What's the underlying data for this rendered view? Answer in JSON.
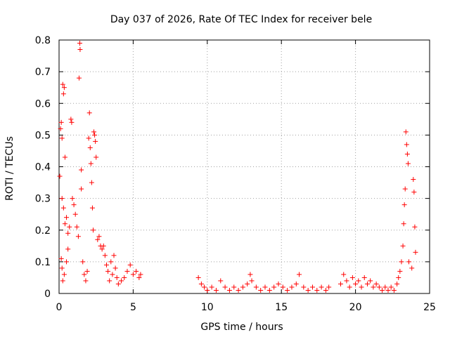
{
  "chart_data": {
    "type": "scatter",
    "title": "Day 037 of 2026, Rate Of TEC Index for receiver bele",
    "xlabel": "GPS time / hours",
    "ylabel": "ROTI / TECUs",
    "xlim": [
      0,
      25
    ],
    "ylim": [
      0,
      0.8
    ],
    "xticks": [
      0,
      5,
      10,
      15,
      20,
      25
    ],
    "xtick_labels": [
      "0",
      "5",
      "10",
      "15",
      "20",
      "25"
    ],
    "yticks": [
      0,
      0.1,
      0.2,
      0.3,
      0.4,
      0.5,
      0.6,
      0.7,
      0.8
    ],
    "ytick_labels": [
      "0",
      "0.1",
      "0.2",
      "0.3",
      "0.4",
      "0.5",
      "0.6",
      "0.7",
      "0.8"
    ],
    "grid": true,
    "marker": "+",
    "marker_color": "#ff0000",
    "series": [
      {
        "name": "ROTI",
        "points": [
          [
            0.05,
            0.37
          ],
          [
            0.1,
            0.52
          ],
          [
            0.15,
            0.54
          ],
          [
            0.2,
            0.49
          ],
          [
            0.25,
            0.66
          ],
          [
            0.3,
            0.63
          ],
          [
            0.35,
            0.65
          ],
          [
            0.4,
            0.43
          ],
          [
            0.2,
            0.3
          ],
          [
            0.3,
            0.27
          ],
          [
            0.4,
            0.22
          ],
          [
            0.5,
            0.24
          ],
          [
            0.6,
            0.19
          ],
          [
            0.7,
            0.21
          ],
          [
            0.15,
            0.11
          ],
          [
            0.2,
            0.08
          ],
          [
            0.25,
            0.04
          ],
          [
            0.35,
            0.06
          ],
          [
            0.5,
            0.1
          ],
          [
            0.6,
            0.14
          ],
          [
            0.8,
            0.55
          ],
          [
            0.85,
            0.54
          ],
          [
            0.9,
            0.3
          ],
          [
            1.0,
            0.28
          ],
          [
            1.1,
            0.25
          ],
          [
            1.2,
            0.21
          ],
          [
            1.3,
            0.18
          ],
          [
            1.35,
            0.68
          ],
          [
            1.4,
            0.79
          ],
          [
            1.42,
            0.77
          ],
          [
            1.5,
            0.33
          ],
          [
            1.5,
            0.39
          ],
          [
            1.6,
            0.1
          ],
          [
            1.7,
            0.06
          ],
          [
            1.8,
            0.04
          ],
          [
            1.9,
            0.07
          ],
          [
            2.0,
            0.49
          ],
          [
            2.05,
            0.57
          ],
          [
            2.1,
            0.46
          ],
          [
            2.15,
            0.41
          ],
          [
            2.2,
            0.35
          ],
          [
            2.25,
            0.27
          ],
          [
            2.3,
            0.2
          ],
          [
            2.35,
            0.51
          ],
          [
            2.4,
            0.5
          ],
          [
            2.45,
            0.48
          ],
          [
            2.5,
            0.43
          ],
          [
            2.6,
            0.17
          ],
          [
            2.7,
            0.18
          ],
          [
            2.8,
            0.15
          ],
          [
            2.9,
            0.14
          ],
          [
            3.0,
            0.15
          ],
          [
            3.1,
            0.12
          ],
          [
            3.2,
            0.09
          ],
          [
            3.3,
            0.07
          ],
          [
            3.4,
            0.04
          ],
          [
            3.5,
            0.1
          ],
          [
            3.6,
            0.06
          ],
          [
            3.7,
            0.12
          ],
          [
            3.8,
            0.08
          ],
          [
            3.9,
            0.05
          ],
          [
            4.0,
            0.03
          ],
          [
            4.2,
            0.04
          ],
          [
            4.4,
            0.05
          ],
          [
            4.6,
            0.07
          ],
          [
            4.8,
            0.09
          ],
          [
            5.0,
            0.06
          ],
          [
            5.2,
            0.07
          ],
          [
            5.4,
            0.05
          ],
          [
            5.5,
            0.06
          ],
          [
            9.4,
            0.05
          ],
          [
            9.6,
            0.03
          ],
          [
            9.8,
            0.02
          ],
          [
            10.0,
            0.01
          ],
          [
            10.3,
            0.02
          ],
          [
            10.6,
            0.01
          ],
          [
            10.9,
            0.04
          ],
          [
            11.2,
            0.02
          ],
          [
            11.5,
            0.01
          ],
          [
            11.8,
            0.02
          ],
          [
            12.1,
            0.01
          ],
          [
            12.4,
            0.02
          ],
          [
            12.7,
            0.03
          ],
          [
            12.9,
            0.06
          ],
          [
            13.0,
            0.04
          ],
          [
            13.3,
            0.02
          ],
          [
            13.6,
            0.01
          ],
          [
            13.9,
            0.02
          ],
          [
            14.2,
            0.01
          ],
          [
            14.5,
            0.02
          ],
          [
            14.8,
            0.03
          ],
          [
            15.1,
            0.02
          ],
          [
            15.4,
            0.01
          ],
          [
            15.7,
            0.02
          ],
          [
            16.0,
            0.03
          ],
          [
            16.2,
            0.06
          ],
          [
            16.5,
            0.02
          ],
          [
            16.8,
            0.01
          ],
          [
            17.1,
            0.02
          ],
          [
            17.4,
            0.01
          ],
          [
            17.7,
            0.02
          ],
          [
            18.0,
            0.01
          ],
          [
            18.2,
            0.02
          ],
          [
            19.0,
            0.03
          ],
          [
            19.2,
            0.06
          ],
          [
            19.4,
            0.04
          ],
          [
            19.6,
            0.02
          ],
          [
            19.8,
            0.05
          ],
          [
            20.0,
            0.03
          ],
          [
            20.2,
            0.04
          ],
          [
            20.4,
            0.02
          ],
          [
            20.6,
            0.05
          ],
          [
            20.8,
            0.03
          ],
          [
            21.0,
            0.04
          ],
          [
            21.2,
            0.02
          ],
          [
            21.4,
            0.03
          ],
          [
            21.6,
            0.02
          ],
          [
            21.8,
            0.01
          ],
          [
            22.0,
            0.02
          ],
          [
            22.2,
            0.01
          ],
          [
            22.4,
            0.02
          ],
          [
            22.6,
            0.01
          ],
          [
            22.8,
            0.03
          ],
          [
            22.9,
            0.05
          ],
          [
            23.0,
            0.07
          ],
          [
            23.1,
            0.1
          ],
          [
            23.2,
            0.15
          ],
          [
            23.25,
            0.22
          ],
          [
            23.3,
            0.28
          ],
          [
            23.35,
            0.33
          ],
          [
            23.4,
            0.51
          ],
          [
            23.45,
            0.47
          ],
          [
            23.5,
            0.44
          ],
          [
            23.55,
            0.41
          ],
          [
            23.6,
            0.1
          ],
          [
            23.8,
            0.08
          ],
          [
            23.9,
            0.36
          ],
          [
            23.95,
            0.32
          ],
          [
            24.0,
            0.21
          ],
          [
            24.05,
            0.13
          ]
        ]
      }
    ]
  }
}
